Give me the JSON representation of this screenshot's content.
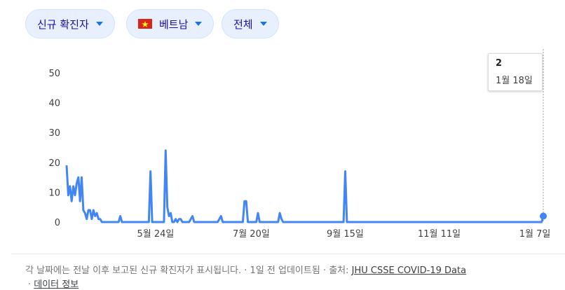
{
  "filters": {
    "metric_label": "신규 확진자",
    "country_label": "베트남",
    "range_label": "전체"
  },
  "colors": {
    "line": "#4285f4",
    "chip_bg": "#e8f0fe",
    "chip_text": "#1a0dab",
    "flag_red": "#da251d",
    "flag_star": "#ffff00"
  },
  "tooltip": {
    "value": "2",
    "date": "1월 18일"
  },
  "footer": {
    "note": "각 날짜에는 전날 이후 보고된 신규 확진자가 표시됩니다.",
    "updated": "1일 전 업데이트됨",
    "source_prefix": "출처:",
    "source_link": "JHU CSSE COVID-19 Data",
    "data_info_link": "데이터 정보"
  },
  "chart_data": {
    "type": "line",
    "title": "",
    "xlabel": "",
    "ylabel": "",
    "ylim": [
      0,
      50
    ],
    "y_ticks": [
      0,
      10,
      20,
      30,
      40,
      50
    ],
    "x_tick_labels": [
      "5월 24일",
      "7월 20일",
      "9월 15일",
      "11월 11일",
      "1월 7일"
    ],
    "x_tick_index": [
      53,
      110,
      166,
      222,
      279
    ],
    "series": [
      {
        "values": [
          19,
          9,
          12,
          7,
          12,
          9,
          13,
          15,
          7,
          15,
          4,
          3,
          1,
          4,
          4,
          1,
          4,
          2,
          3,
          1,
          1,
          0,
          0,
          0,
          0,
          0,
          0,
          0,
          0,
          0,
          0,
          0,
          2,
          0,
          0,
          0,
          0,
          0,
          0,
          0,
          0,
          0,
          0,
          0,
          0,
          0,
          0,
          0,
          0,
          0,
          17,
          0,
          0,
          0,
          0,
          0,
          0,
          0,
          0,
          24,
          5,
          2,
          3,
          0,
          0,
          1,
          0,
          1,
          1,
          0,
          0,
          0,
          0,
          0,
          1,
          2,
          0,
          0,
          0,
          0,
          0,
          0,
          0,
          0,
          0,
          0,
          0,
          0,
          0,
          0,
          0,
          1,
          2,
          0,
          0,
          0,
          0,
          0,
          0,
          0,
          0,
          0,
          0,
          0,
          0,
          0,
          7,
          7,
          0,
          0,
          0,
          0,
          0,
          0,
          3,
          0,
          0,
          0,
          0,
          0,
          0,
          0,
          0,
          0,
          0,
          0,
          0,
          3,
          1,
          0,
          0,
          0,
          0,
          0,
          0,
          0,
          0,
          0,
          0,
          0,
          0,
          0,
          0,
          0,
          0,
          0,
          0,
          0,
          0,
          0,
          0,
          0,
          0,
          0,
          0,
          0,
          0,
          0,
          0,
          0,
          0,
          0,
          0,
          0,
          0,
          0,
          17,
          0,
          0,
          0,
          0,
          0,
          0,
          0,
          0,
          0,
          0,
          0,
          0,
          0,
          0,
          0,
          0,
          0,
          0,
          0,
          0,
          0,
          0,
          0,
          0,
          0,
          0,
          0,
          0,
          0,
          0,
          0,
          0,
          0,
          0,
          0,
          0,
          0,
          0,
          0,
          0,
          0,
          0,
          0,
          0,
          0,
          0,
          0,
          0,
          0,
          0,
          0,
          0,
          0,
          0,
          0,
          0,
          0,
          0,
          0,
          0,
          0,
          0,
          0,
          0,
          0,
          0,
          0,
          0,
          0,
          0,
          0,
          0,
          0,
          0,
          0,
          0,
          0,
          0,
          0,
          0,
          0,
          0,
          0,
          0,
          0,
          0,
          0,
          0,
          0,
          0,
          0,
          0,
          0,
          0,
          0,
          0,
          0,
          0,
          0,
          0,
          0,
          0,
          0,
          0,
          0,
          0,
          0,
          0,
          0,
          0,
          0,
          0,
          0,
          0,
          0,
          0,
          0,
          2
        ]
      }
    ]
  }
}
